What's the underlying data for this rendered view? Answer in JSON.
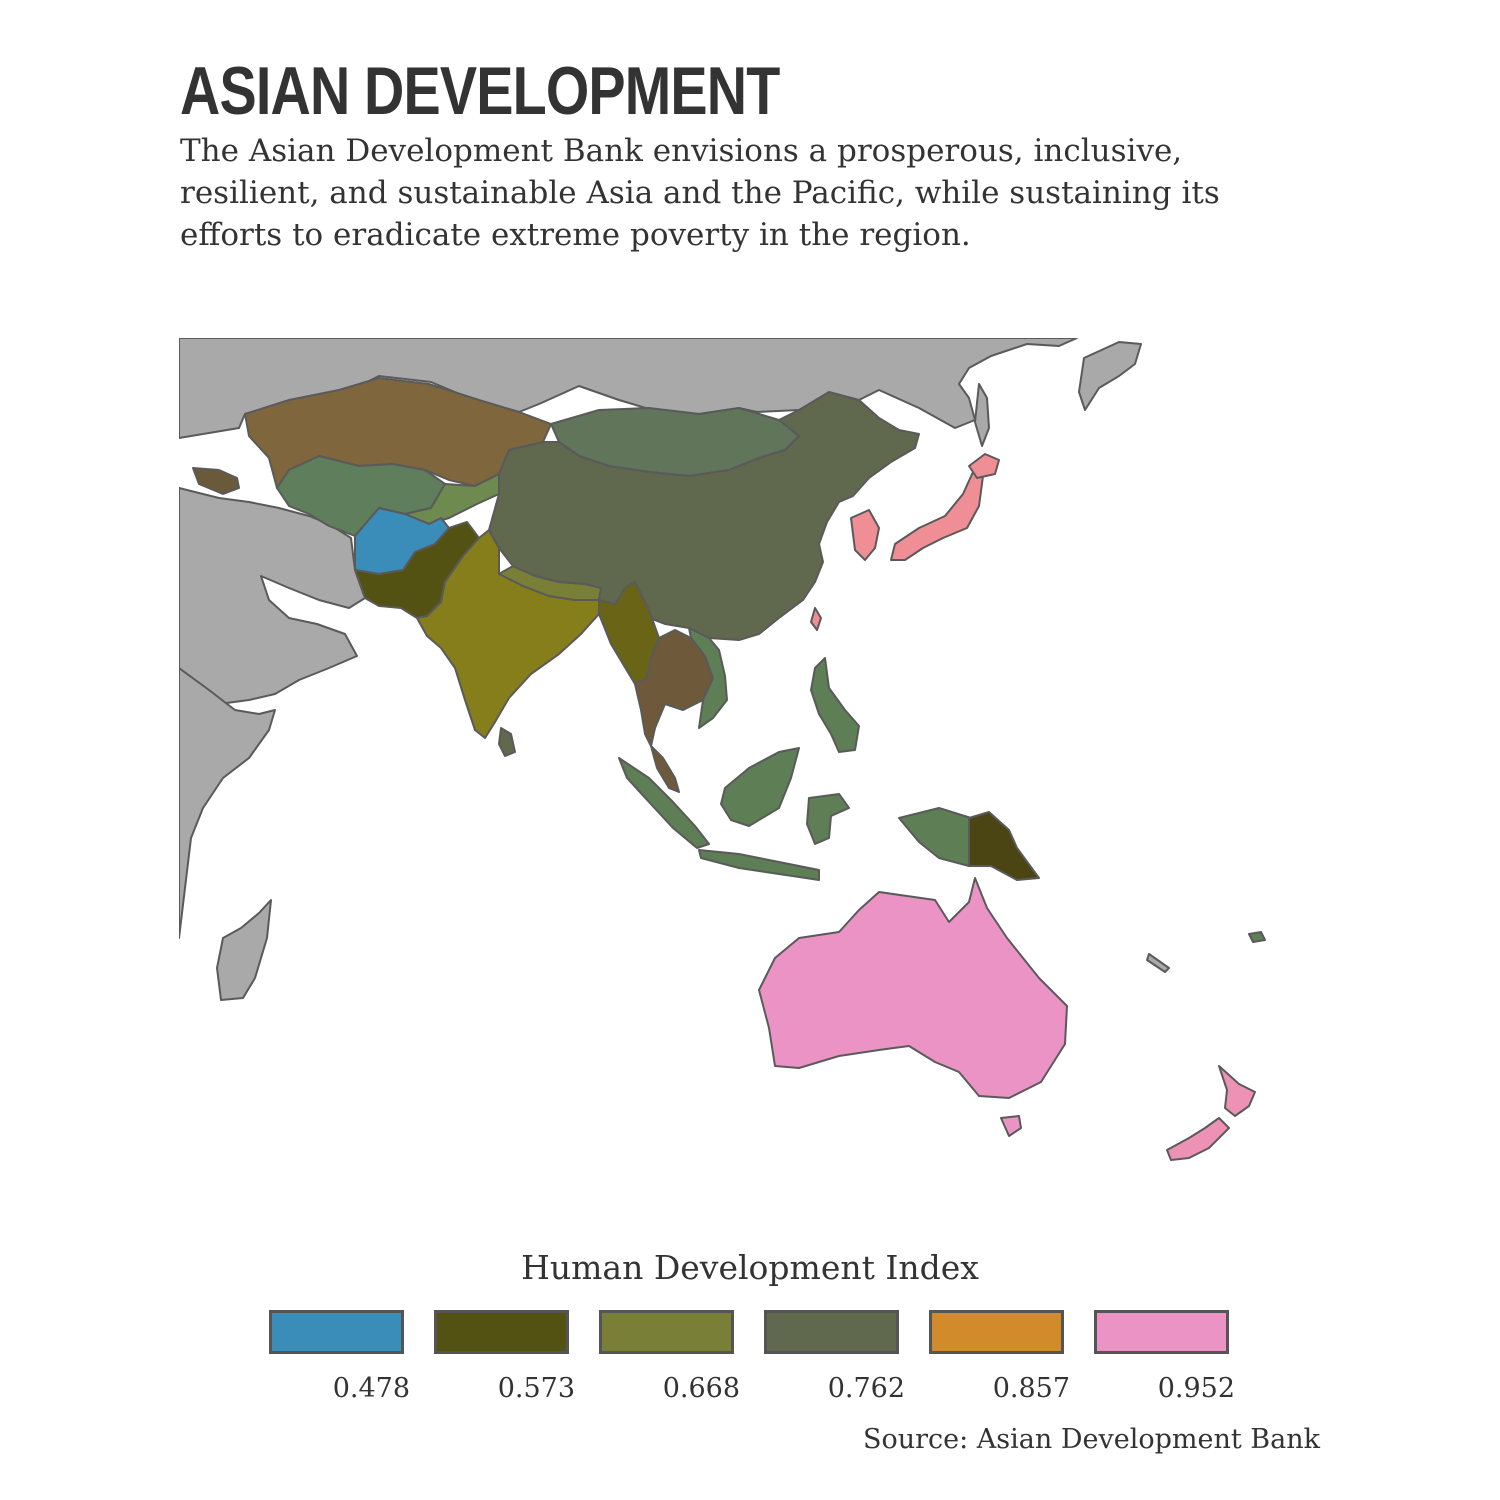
{
  "title": "ASIAN DEVELOPMENT",
  "subtitle": "The Asian Development Bank envisions a prosperous, inclusive, resilient, and sustainable Asia and the Pacific, while sustaining its efforts to eradicate extreme poverty in the region.",
  "legend": {
    "title": "Human Development Index",
    "items": [
      {
        "label": "0.478",
        "color": "#3A8DB8"
      },
      {
        "label": "0.573",
        "color": "#545213"
      },
      {
        "label": "0.668",
        "color": "#7A7F38"
      },
      {
        "label": "0.762",
        "color": "#60684E"
      },
      {
        "label": "0.857",
        "color": "#D18B2B"
      },
      {
        "label": "0.952",
        "color": "#EB93C5"
      }
    ]
  },
  "source": "Source: Asian Development Bank",
  "colors": {
    "no_data": "#A9A9A9",
    "border": "#5A5A5A",
    "afghanistan": "#3A8DB8",
    "pakistan": "#545213",
    "india": "#857E1A",
    "china": "#60684E",
    "mongolia": "#60755A",
    "kazakhstan": "#7F663C",
    "central_asia": "#5E7E5C",
    "myanmar": "#6A6416",
    "thailand": "#6E5A3A",
    "indonesia": "#5E7E55",
    "png": "#4A4512",
    "japan": "#F08E95",
    "australia": "#EB93C5",
    "new_zealand": "#EE92B5"
  }
}
